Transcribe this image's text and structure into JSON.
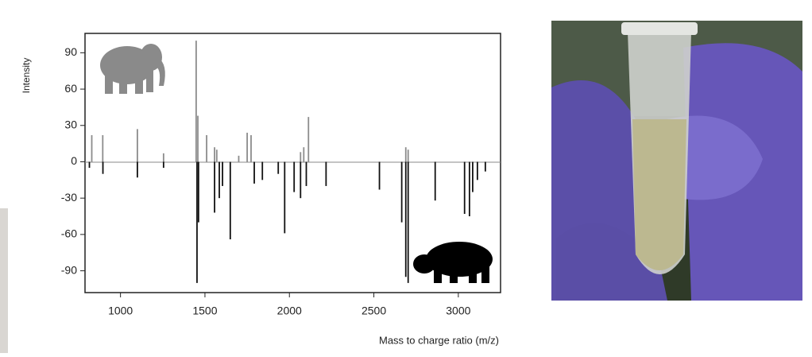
{
  "chart_data": {
    "type": "stick",
    "y_label": "Intensity",
    "x_label": "Mass to charge ratio (m/z)",
    "xlim": [
      790,
      3250
    ],
    "xticks": [
      1000,
      1500,
      2000,
      2500,
      3000
    ],
    "ylim": [
      -108,
      106
    ],
    "yticks": [
      -90,
      -60,
      -30,
      0,
      30,
      60,
      90
    ],
    "series": [
      {
        "color": "#8c8c8c",
        "x": [
          830,
          895,
          1100,
          1255,
          1448,
          1458,
          1510,
          1557,
          1570,
          1700,
          1750,
          1773,
          2066,
          2085,
          2113,
          2689,
          2703
        ],
        "values": [
          22,
          22,
          27,
          7,
          100,
          38,
          22,
          12,
          10,
          5,
          24,
          22,
          8,
          12,
          37,
          12,
          10
        ]
      },
      {
        "color": "#111111",
        "x": [
          816,
          896,
          1100,
          1255,
          1453,
          1462,
          1557,
          1585,
          1604,
          1650,
          1792,
          1840,
          1934,
          1972,
          2028,
          2066,
          2100,
          2217,
          2533,
          2665,
          2689,
          2703,
          2863,
          3037,
          3066,
          3085,
          3113,
          3160
        ],
        "values": [
          -5,
          -10,
          -13,
          -5,
          -100,
          -50,
          -42,
          -30,
          -20,
          -64,
          -18,
          -15,
          -10,
          -59,
          -25,
          -30,
          -20,
          -20,
          -23,
          -50,
          -95,
          -100,
          -32,
          -43,
          -45,
          -25,
          -15,
          -8
        ]
      }
    ]
  }
}
